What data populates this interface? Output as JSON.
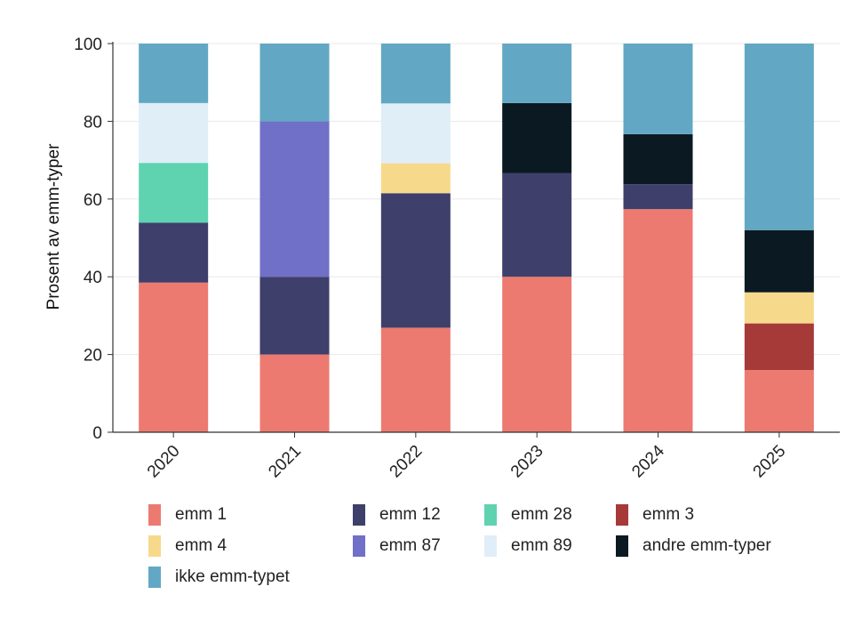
{
  "chart_data": {
    "type": "bar",
    "stacked": true,
    "title": "",
    "xlabel": "",
    "ylabel": "Prosent av emm-typer",
    "ylim": [
      0,
      100
    ],
    "yticks": [
      "0",
      "20",
      "40",
      "60",
      "80",
      "100"
    ],
    "grid": true,
    "legend_position": "bottom",
    "categories": [
      "2020",
      "2021",
      "2022",
      "2023",
      "2024",
      "2025"
    ],
    "series": [
      {
        "name": "emm 1",
        "color": "#ec7a70",
        "values": [
          38.5,
          20,
          26.9,
          40,
          57.4,
          16
        ]
      },
      {
        "name": "emm 3",
        "color": "#a53a38",
        "values": [
          0,
          0,
          0,
          0,
          0,
          12
        ]
      },
      {
        "name": "emm 12",
        "color": "#3f3f6b",
        "values": [
          15.4,
          20,
          34.6,
          26.7,
          6.4,
          0
        ]
      },
      {
        "name": "emm 4",
        "color": "#f7d98b",
        "values": [
          0,
          0,
          7.7,
          0,
          0,
          8
        ]
      },
      {
        "name": "emm 28",
        "color": "#5fd3b0",
        "values": [
          15.4,
          0,
          0,
          0,
          0,
          0
        ]
      },
      {
        "name": "emm 87",
        "color": "#7070c8",
        "values": [
          0,
          40,
          0,
          0,
          0,
          0
        ]
      },
      {
        "name": "emm 89",
        "color": "#dfeef7",
        "values": [
          15.4,
          0,
          15.4,
          0,
          0,
          0
        ]
      },
      {
        "name": "andre emm-typer",
        "color": "#0b1a22",
        "values": [
          0,
          0,
          0,
          18,
          12.9,
          16
        ]
      },
      {
        "name": "ikke emm-typet",
        "color": "#62a8c4",
        "values": [
          15.3,
          20,
          15.4,
          15.3,
          23.3,
          48
        ]
      }
    ],
    "legend_order": [
      "emm 1",
      "emm 12",
      "emm 28",
      "emm 3",
      "emm 4",
      "emm 87",
      "emm 89",
      "andre emm-typer",
      "ikke emm-typet"
    ]
  }
}
